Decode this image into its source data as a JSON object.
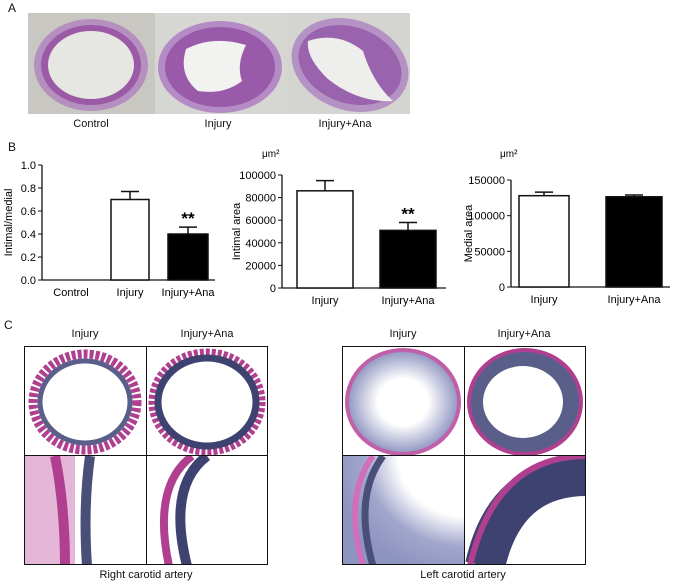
{
  "panels": {
    "a": "A",
    "b": "B",
    "c": "C"
  },
  "panel_a": {
    "labels": [
      "Control",
      "Injury",
      "Injury+Ana"
    ]
  },
  "panel_c": {
    "right": {
      "labels": [
        "Injury",
        "Injury+Ana"
      ],
      "caption": "Right carotid artery"
    },
    "left": {
      "labels": [
        "Injury",
        "Injury+Ana"
      ],
      "caption": "Left carotid artery"
    }
  },
  "colors": {
    "bar_injury": "#ffffff",
    "bar_injury_ana": "#000000",
    "stain_pink": "#b0408f",
    "stain_blue": "#4a4f7a"
  },
  "chart_data": [
    {
      "type": "bar",
      "ylabel": "Intimal/medial",
      "unit": "",
      "categories": [
        "Control",
        "Injury",
        "Injury+Ana"
      ],
      "values": [
        0,
        0.7,
        0.4
      ],
      "errors": [
        0,
        0.07,
        0.06
      ],
      "fills": [
        "#ffffff",
        "#ffffff",
        "#000000"
      ],
      "annotations": [
        "",
        "",
        "**"
      ],
      "ylim": [
        0,
        1.0
      ],
      "yticks": [
        "0.0",
        "0.2",
        "0.4",
        "0.6",
        "0.8",
        "1.0"
      ]
    },
    {
      "type": "bar",
      "ylabel": "Intimal area",
      "unit": "μm²",
      "categories": [
        "Injury",
        "Injury+Ana"
      ],
      "values": [
        86000,
        51000
      ],
      "errors": [
        9000,
        7000
      ],
      "fills": [
        "#ffffff",
        "#000000"
      ],
      "annotations": [
        "",
        "**"
      ],
      "ylim": [
        0,
        100000
      ],
      "yticks": [
        "0",
        "20000",
        "40000",
        "60000",
        "80000",
        "100000"
      ]
    },
    {
      "type": "bar",
      "ylabel": "Medial area",
      "unit": "μm²",
      "categories": [
        "Injury",
        "Injury+Ana"
      ],
      "values": [
        128000,
        126500
      ],
      "errors": [
        5000,
        2500
      ],
      "fills": [
        "#ffffff",
        "#000000"
      ],
      "annotations": [
        "",
        ""
      ],
      "ylim": [
        0,
        150000
      ],
      "yticks": [
        "0",
        "50000",
        "100000",
        "150000"
      ]
    }
  ]
}
